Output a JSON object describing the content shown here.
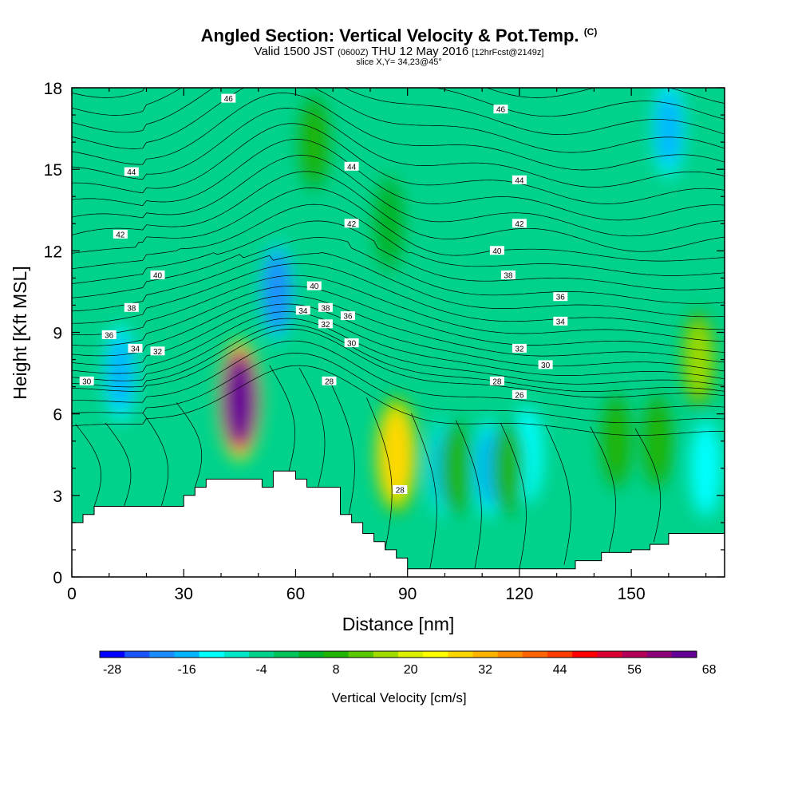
{
  "title": {
    "main": "Angled Section: Vertical Velocity & Pot.Temp.",
    "main_unit": "(C)",
    "valid_prefix": "Valid 1500 JST",
    "valid_utc": "(0600Z)",
    "valid_date": "THU 12 May 2016",
    "forecast": "[12hrFcst@2149z]",
    "slice": "slice X,Y= 34,23@45°"
  },
  "colors": {
    "scale": [
      "#0000ff",
      "#1a55ff",
      "#1a8cff",
      "#00b4ff",
      "#00ffff",
      "#00e6c8",
      "#00d28c",
      "#00c35a",
      "#00b428",
      "#1eb400",
      "#5ac800",
      "#a0dc00",
      "#dcf000",
      "#ffff00",
      "#ffd700",
      "#ffb400",
      "#ff8c00",
      "#ff6400",
      "#ff3c00",
      "#ff0000",
      "#dc0032",
      "#b4005a",
      "#8c0078",
      "#640096"
    ],
    "terrain": "#ffffff",
    "contour": "#000000"
  },
  "chart_data": {
    "type": "heatmap",
    "title": "Angled Section: Vertical Velocity & Pot.Temp. (C)",
    "xlabel": "Distance [nm]",
    "ylabel": "Height [Kft MSL]",
    "xlim": [
      0,
      175
    ],
    "ylim": [
      0,
      18
    ],
    "x_ticks": [
      0,
      30,
      60,
      90,
      120,
      150
    ],
    "y_ticks": [
      0,
      3,
      6,
      9,
      12,
      15,
      18
    ],
    "colorbar": {
      "label": "Vertical Velocity [cm/s]",
      "min": -28,
      "max": 68,
      "step": 4,
      "tick_labels": [
        "-28",
        "-16",
        "-4",
        "8",
        "20",
        "32",
        "44",
        "56",
        "68"
      ],
      "tick_values": [
        -28,
        -16,
        -4,
        8,
        20,
        32,
        44,
        56,
        68
      ]
    },
    "terrain_profile": {
      "x": [
        0,
        3,
        6,
        9,
        12,
        27,
        30,
        33,
        36,
        45,
        48,
        51,
        54,
        57,
        60,
        63,
        66,
        69,
        72,
        75,
        78,
        81,
        84,
        87,
        90,
        105,
        120,
        129,
        135,
        142,
        150,
        155,
        160,
        175
      ],
      "height": [
        2.0,
        2.3,
        2.6,
        2.6,
        2.6,
        2.6,
        3.0,
        3.3,
        3.6,
        3.6,
        3.6,
        3.3,
        3.9,
        3.9,
        3.6,
        3.3,
        3.3,
        3.3,
        2.3,
        2.0,
        1.6,
        1.3,
        1.0,
        0.7,
        0.3,
        0.3,
        0.3,
        0.3,
        0.6,
        0.9,
        1.0,
        1.2,
        1.6,
        1.6
      ]
    },
    "velocity_cells": [
      {
        "x": 45,
        "z": 6.5,
        "value": 70
      },
      {
        "x": 87,
        "z": 4.5,
        "value": 28
      },
      {
        "x": 55,
        "z": 10.5,
        "value": -20
      },
      {
        "x": 13,
        "z": 7.5,
        "value": -16
      },
      {
        "x": 100,
        "z": 4.0,
        "value": -14
      },
      {
        "x": 112,
        "z": 4.0,
        "value": -14
      },
      {
        "x": 122,
        "z": 4.5,
        "value": -12
      },
      {
        "x": 168,
        "z": 8.0,
        "value": 16
      },
      {
        "x": 170,
        "z": 4.0,
        "value": -12
      },
      {
        "x": 160,
        "z": 16.5,
        "value": -14
      },
      {
        "x": 103,
        "z": 4.0,
        "value": 10
      },
      {
        "x": 117,
        "z": 4.0,
        "value": 10
      },
      {
        "x": 146,
        "z": 5.0,
        "value": 10
      },
      {
        "x": 157,
        "z": 5.0,
        "value": 10
      },
      {
        "x": 65,
        "z": 16.0,
        "value": 8
      },
      {
        "x": 85,
        "z": 13.0,
        "value": 6
      }
    ],
    "contour_labels": [
      {
        "text": "46",
        "x": 42,
        "z": 17.6
      },
      {
        "text": "46",
        "x": 115,
        "z": 17.2
      },
      {
        "text": "44",
        "x": 16,
        "z": 14.9
      },
      {
        "text": "44",
        "x": 75,
        "z": 15.1
      },
      {
        "text": "44",
        "x": 120,
        "z": 14.6
      },
      {
        "text": "42",
        "x": 13,
        "z": 12.6
      },
      {
        "text": "42",
        "x": 75,
        "z": 13.0
      },
      {
        "text": "42",
        "x": 120,
        "z": 13.0
      },
      {
        "text": "40",
        "x": 23,
        "z": 11.1
      },
      {
        "text": "40",
        "x": 65,
        "z": 10.7
      },
      {
        "text": "40",
        "x": 114,
        "z": 12.0
      },
      {
        "text": "38",
        "x": 16,
        "z": 9.9
      },
      {
        "text": "38",
        "x": 68,
        "z": 9.9
      },
      {
        "text": "38",
        "x": 117,
        "z": 11.1
      },
      {
        "text": "36",
        "x": 10,
        "z": 8.9
      },
      {
        "text": "36",
        "x": 74,
        "z": 9.6
      },
      {
        "text": "36",
        "x": 131,
        "z": 10.3
      },
      {
        "text": "34",
        "x": 17,
        "z": 8.4
      },
      {
        "text": "34",
        "x": 62,
        "z": 9.8
      },
      {
        "text": "34",
        "x": 131,
        "z": 9.4
      },
      {
        "text": "32",
        "x": 23,
        "z": 8.3
      },
      {
        "text": "32",
        "x": 68,
        "z": 9.3
      },
      {
        "text": "32",
        "x": 120,
        "z": 8.4
      },
      {
        "text": "30",
        "x": 4,
        "z": 7.2
      },
      {
        "text": "30",
        "x": 75,
        "z": 8.6
      },
      {
        "text": "30",
        "x": 127,
        "z": 7.8
      },
      {
        "text": "28",
        "x": 69,
        "z": 7.2
      },
      {
        "text": "28",
        "x": 114,
        "z": 7.2
      },
      {
        "text": "28",
        "x": 88,
        "z": 3.2
      },
      {
        "text": "26",
        "x": 120,
        "z": 6.7
      }
    ]
  }
}
